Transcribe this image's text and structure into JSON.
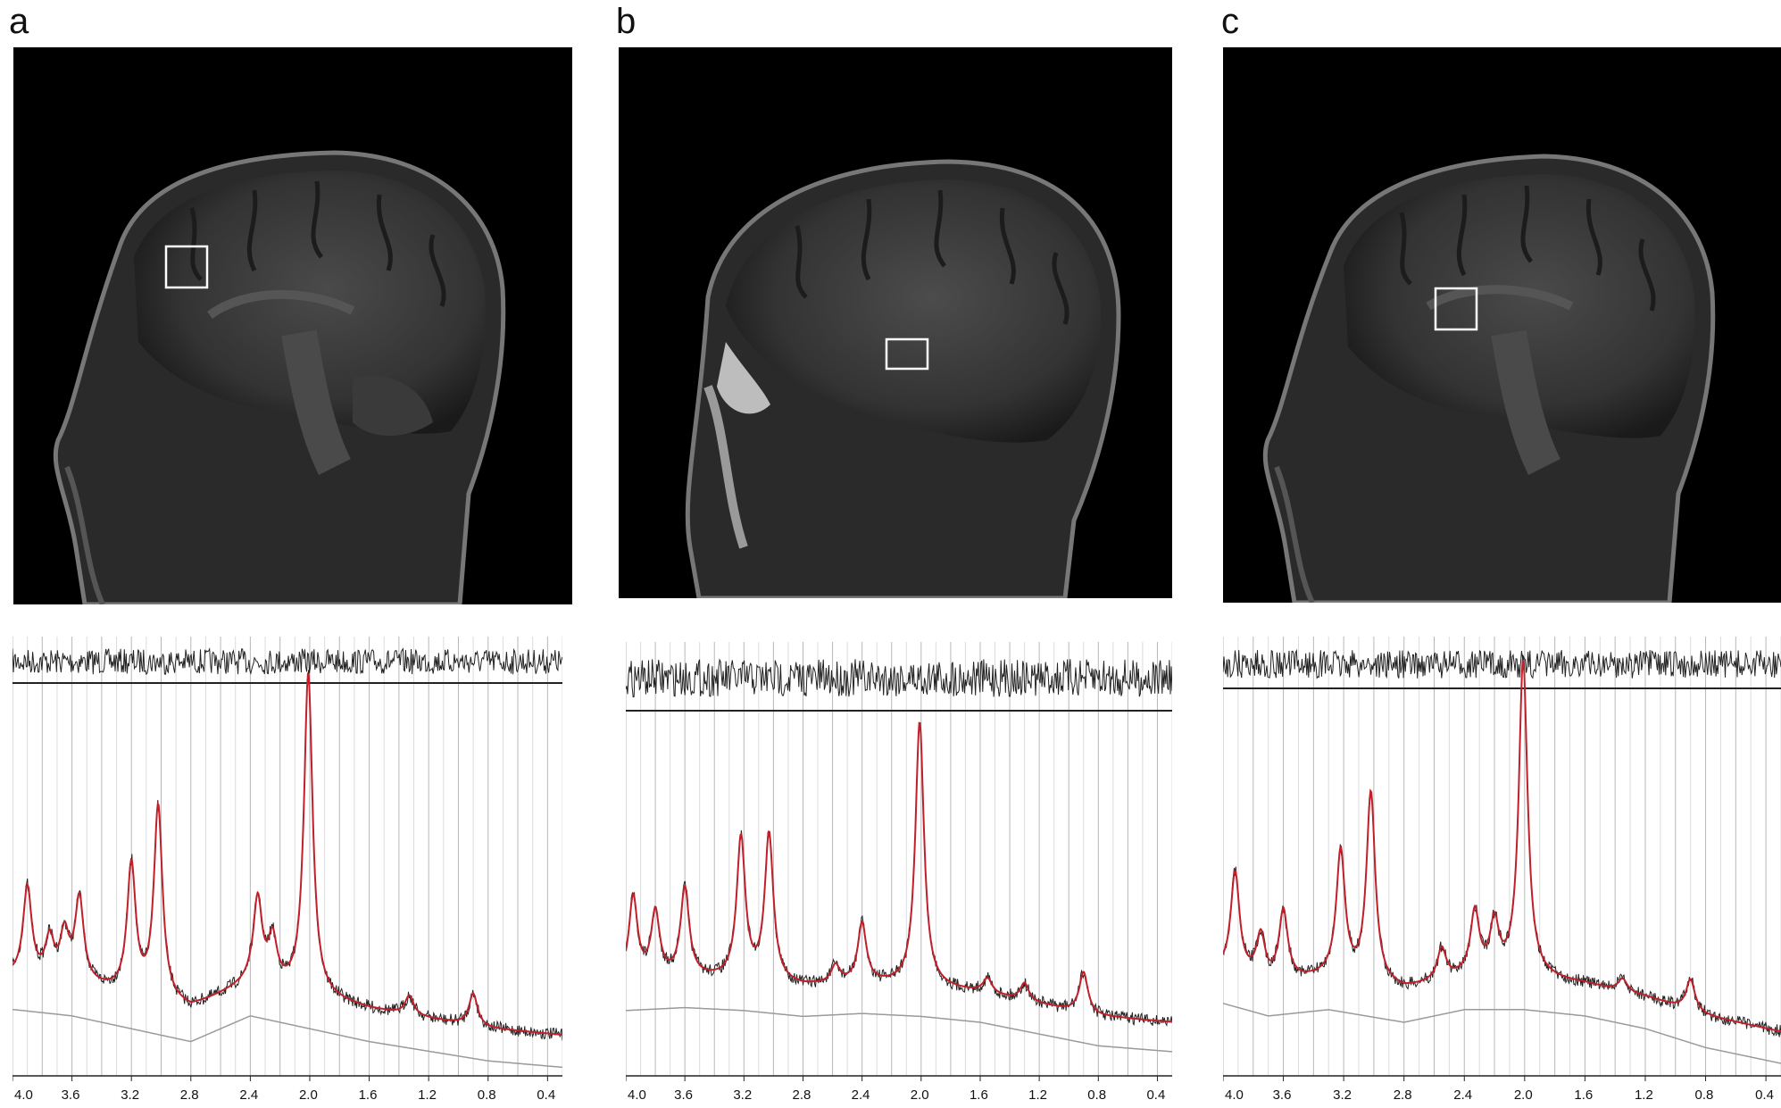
{
  "panels": [
    {
      "label": "a",
      "axis_ticks": [
        "4.0",
        "3.6",
        "3.2",
        "2.8",
        "2.4",
        "2.0",
        "1.6",
        "1.2",
        "0.8",
        "0.4"
      ]
    },
    {
      "label": "b",
      "axis_ticks": [
        "4.0",
        "3.6",
        "3.2",
        "2.8",
        "2.4",
        "2.0",
        "1.6",
        "1.2",
        "0.8",
        "0.4"
      ]
    },
    {
      "label": "c",
      "axis_ticks": [
        "4.0",
        "3.6",
        "3.2",
        "2.8",
        "2.4",
        "2.0",
        "1.6",
        "1.2",
        "0.8",
        "0.4"
      ]
    }
  ],
  "chart_data": [
    {
      "type": "line",
      "x_range": [
        4.0,
        0.3
      ],
      "baseline_shape": [
        [
          4.0,
          0.04
        ],
        [
          3.6,
          0.02
        ],
        [
          3.2,
          -0.02
        ],
        [
          2.8,
          -0.06
        ],
        [
          2.4,
          0.02
        ],
        [
          2.0,
          -0.02
        ],
        [
          1.6,
          -0.06
        ],
        [
          1.2,
          -0.09
        ],
        [
          0.8,
          -0.12
        ],
        [
          0.3,
          -0.14
        ]
      ],
      "peaks": [
        [
          3.9,
          0.28
        ],
        [
          3.75,
          0.12
        ],
        [
          3.65,
          0.14
        ],
        [
          3.55,
          0.26
        ],
        [
          3.2,
          0.4
        ],
        [
          3.02,
          0.6
        ],
        [
          2.35,
          0.26
        ],
        [
          2.25,
          0.14
        ],
        [
          2.01,
          1.0
        ],
        [
          1.33,
          0.06
        ],
        [
          0.9,
          0.1
        ]
      ],
      "colors": {
        "fit": "#c0202a",
        "data": "#222222",
        "baseline": "#9a9a9a"
      }
    },
    {
      "type": "line",
      "x_range": [
        4.0,
        0.3
      ],
      "baseline_shape": [
        [
          4.0,
          0.04
        ],
        [
          3.6,
          0.05
        ],
        [
          3.2,
          0.04
        ],
        [
          2.8,
          0.02
        ],
        [
          2.4,
          0.03
        ],
        [
          2.0,
          0.02
        ],
        [
          1.6,
          0.0
        ],
        [
          1.2,
          -0.04
        ],
        [
          0.8,
          -0.08
        ],
        [
          0.3,
          -0.1
        ]
      ],
      "peaks": [
        [
          3.95,
          0.28
        ],
        [
          3.8,
          0.22
        ],
        [
          3.6,
          0.3
        ],
        [
          3.22,
          0.48
        ],
        [
          3.03,
          0.5
        ],
        [
          2.58,
          0.06
        ],
        [
          2.4,
          0.2
        ],
        [
          2.01,
          0.9
        ],
        [
          1.55,
          0.05
        ],
        [
          1.3,
          0.06
        ],
        [
          0.9,
          0.14
        ]
      ],
      "colors": {
        "fit": "#c0202a",
        "data": "#222222",
        "baseline": "#9a9a9a"
      }
    },
    {
      "type": "line",
      "x_range": [
        4.0,
        0.3
      ],
      "baseline_shape": [
        [
          4.0,
          0.06
        ],
        [
          3.7,
          0.02
        ],
        [
          3.3,
          0.04
        ],
        [
          2.8,
          0.0
        ],
        [
          2.4,
          0.04
        ],
        [
          2.0,
          0.04
        ],
        [
          1.6,
          0.02
        ],
        [
          1.2,
          -0.02
        ],
        [
          0.8,
          -0.08
        ],
        [
          0.3,
          -0.13
        ]
      ],
      "peaks": [
        [
          3.92,
          0.32
        ],
        [
          3.75,
          0.14
        ],
        [
          3.6,
          0.22
        ],
        [
          3.22,
          0.4
        ],
        [
          3.02,
          0.6
        ],
        [
          2.55,
          0.1
        ],
        [
          2.33,
          0.2
        ],
        [
          2.2,
          0.16
        ],
        [
          2.01,
          1.0
        ],
        [
          1.35,
          0.04
        ],
        [
          0.9,
          0.1
        ]
      ],
      "colors": {
        "fit": "#c0202a",
        "data": "#222222",
        "baseline": "#9a9a9a"
      }
    }
  ]
}
